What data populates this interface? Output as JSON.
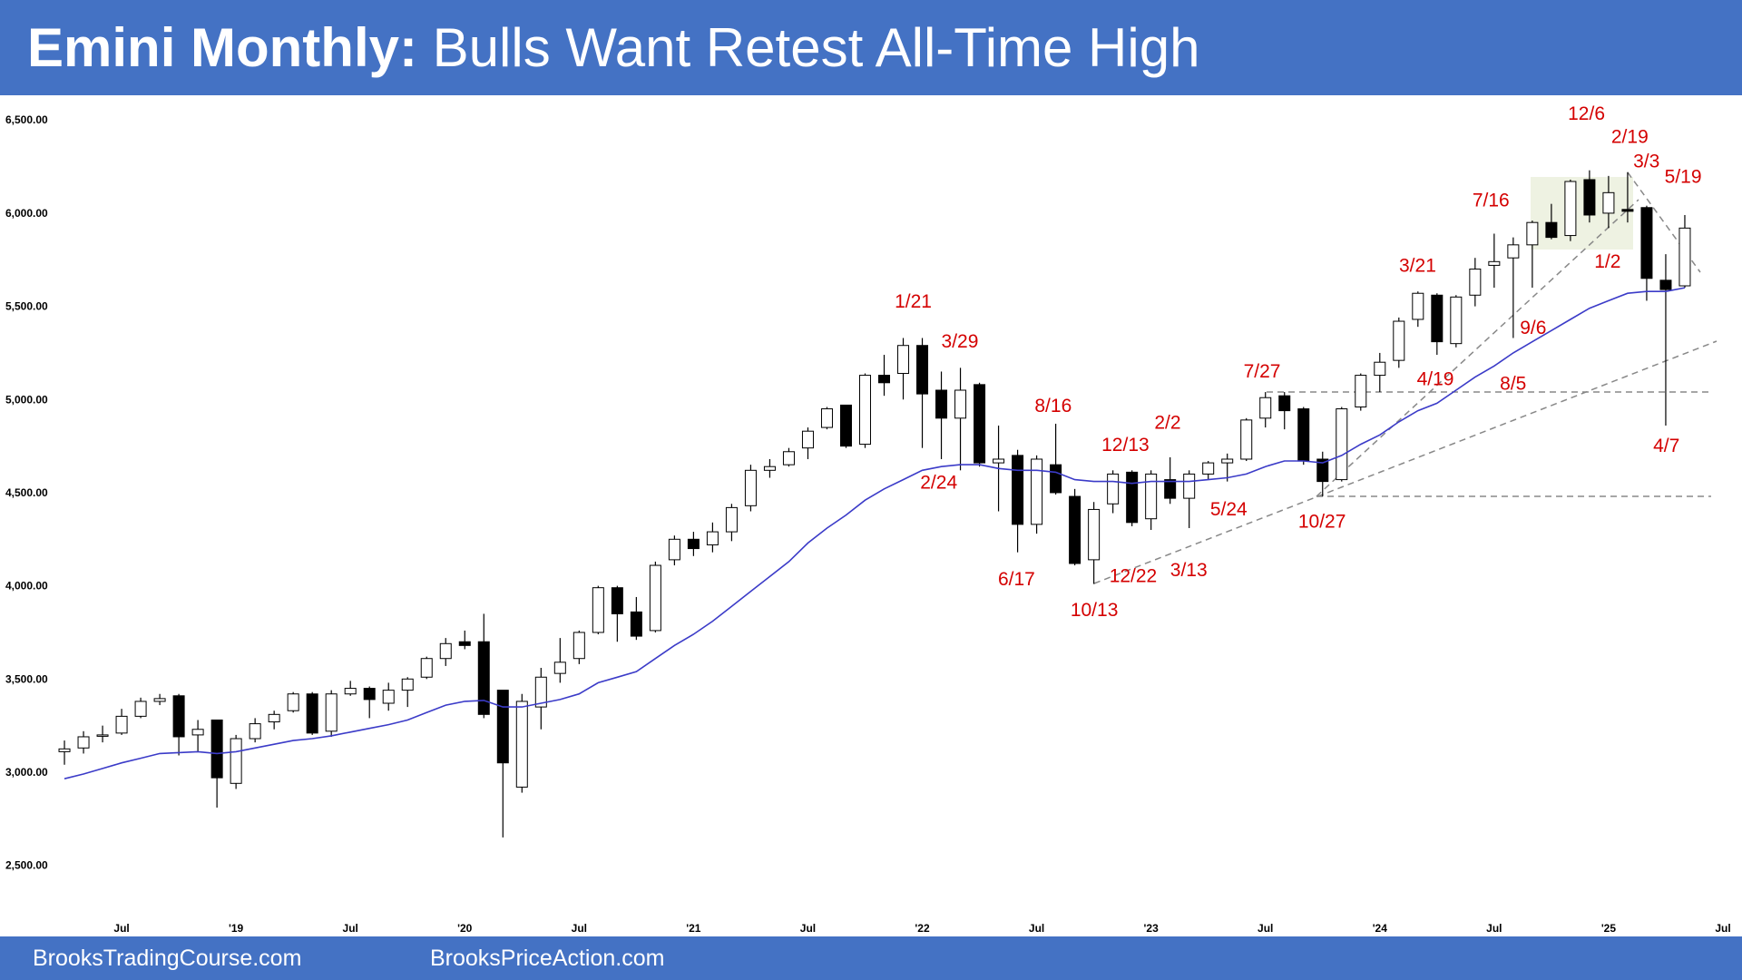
{
  "header": {
    "lead": "Emini Monthly:",
    "title": "Bulls Want Retest All-Time High"
  },
  "footer": {
    "left": "BrooksTradingCourse.com",
    "right": "BrooksPriceAction.com"
  },
  "chart_data": {
    "type": "candlestick",
    "x": [
      "2018-04",
      "2018-05",
      "2018-06",
      "2018-07",
      "2018-08",
      "2018-09",
      "2018-10",
      "2018-11",
      "2018-12",
      "2019-01",
      "2019-02",
      "2019-03",
      "2019-04",
      "2019-05",
      "2019-06",
      "2019-07",
      "2019-08",
      "2019-09",
      "2019-10",
      "2019-11",
      "2019-12",
      "2020-01",
      "2020-02",
      "2020-03",
      "2020-04",
      "2020-05",
      "2020-06",
      "2020-07",
      "2020-08",
      "2020-09",
      "2020-10",
      "2020-11",
      "2020-12",
      "2021-01",
      "2021-02",
      "2021-03",
      "2021-04",
      "2021-05",
      "2021-06",
      "2021-07",
      "2021-08",
      "2021-09",
      "2021-10",
      "2021-11",
      "2021-12",
      "2022-01",
      "2022-02",
      "2022-03",
      "2022-04",
      "2022-05",
      "2022-06",
      "2022-07",
      "2022-08",
      "2022-09",
      "2022-10",
      "2022-11",
      "2022-12",
      "2023-01",
      "2023-02",
      "2023-03",
      "2023-04",
      "2023-05",
      "2023-06",
      "2023-07",
      "2023-08",
      "2023-09",
      "2023-10",
      "2023-11",
      "2023-12",
      "2024-01",
      "2024-02",
      "2024-03",
      "2024-04",
      "2024-05",
      "2024-06",
      "2024-07",
      "2024-08",
      "2024-09",
      "2024-10",
      "2024-11",
      "2024-12",
      "2025-01",
      "2025-02",
      "2025-03",
      "2025-04",
      "2025-05"
    ],
    "open": [
      3110,
      3130,
      3195,
      3210,
      3300,
      3380,
      3410,
      3200,
      3280,
      2940,
      3180,
      3270,
      3330,
      3420,
      3220,
      3420,
      3450,
      3370,
      3440,
      3510,
      3610,
      3700,
      3700,
      3440,
      2920,
      3350,
      3530,
      3610,
      3750,
      3990,
      3860,
      3760,
      4140,
      4250,
      4220,
      4290,
      4430,
      4620,
      4650,
      4740,
      4850,
      4970,
      4760,
      5130,
      5140,
      5290,
      5050,
      4900,
      5080,
      4660,
      4700,
      4330,
      4650,
      4480,
      4140,
      4440,
      4610,
      4360,
      4570,
      4470,
      4600,
      4660,
      4680,
      4900,
      5020,
      4950,
      4680,
      4570,
      4960,
      5130,
      5210,
      5430,
      5560,
      5300,
      5560,
      5720,
      5760,
      5830,
      5950,
      5880,
      6180,
      6000,
      6020,
      6030,
      5640,
      5610
    ],
    "high": [
      3170,
      3220,
      3250,
      3340,
      3400,
      3420,
      3420,
      3280,
      3280,
      3200,
      3290,
      3330,
      3430,
      3430,
      3440,
      3490,
      3460,
      3480,
      3510,
      3620,
      3720,
      3760,
      3850,
      3440,
      3420,
      3560,
      3720,
      3760,
      4000,
      4000,
      3940,
      4130,
      4270,
      4290,
      4340,
      4440,
      4650,
      4680,
      4740,
      4850,
      4960,
      4970,
      5140,
      5240,
      5330,
      5330,
      5150,
      5170,
      5090,
      4860,
      4730,
      4700,
      4870,
      4520,
      4450,
      4620,
      4620,
      4620,
      4690,
      4620,
      4670,
      4710,
      4900,
      5040,
      5040,
      4960,
      4720,
      4960,
      5140,
      5250,
      5440,
      5580,
      5570,
      5560,
      5760,
      5890,
      5870,
      5960,
      6050,
      6180,
      6230,
      6200,
      6220,
      6040,
      5780,
      5990
    ],
    "low": [
      3040,
      3100,
      3160,
      3200,
      3290,
      3360,
      3090,
      3110,
      2810,
      2910,
      3160,
      3230,
      3320,
      3200,
      3190,
      3410,
      3290,
      3330,
      3350,
      3500,
      3570,
      3660,
      3290,
      2650,
      2890,
      3230,
      3480,
      3580,
      3740,
      3700,
      3710,
      3750,
      4110,
      4160,
      4180,
      4240,
      4400,
      4580,
      4640,
      4680,
      4840,
      4740,
      4740,
      5020,
      5000,
      4740,
      4680,
      4620,
      4640,
      4400,
      4180,
      4280,
      4490,
      4110,
      4010,
      4390,
      4320,
      4300,
      4440,
      4310,
      4570,
      4560,
      4670,
      4850,
      4840,
      4650,
      4480,
      4560,
      4940,
      5040,
      5170,
      5390,
      5240,
      5280,
      5500,
      5600,
      5330,
      5600,
      5860,
      5850,
      5950,
      5920,
      5950,
      5530,
      4860,
      5600
    ],
    "close": [
      3125,
      3190,
      3200,
      3300,
      3380,
      3395,
      3190,
      3230,
      2970,
      3180,
      3260,
      3310,
      3420,
      3210,
      3420,
      3450,
      3390,
      3440,
      3500,
      3610,
      3690,
      3680,
      3310,
      3050,
      3380,
      3510,
      3590,
      3750,
      3990,
      3850,
      3730,
      4110,
      4250,
      4200,
      4290,
      4420,
      4620,
      4640,
      4720,
      4830,
      4950,
      4750,
      5130,
      5090,
      5290,
      5030,
      4900,
      5050,
      4660,
      4680,
      4330,
      4680,
      4500,
      4120,
      4410,
      4600,
      4340,
      4600,
      4470,
      4600,
      4660,
      4680,
      4890,
      5010,
      4940,
      4670,
      4560,
      4950,
      5130,
      5200,
      5420,
      5570,
      5310,
      5550,
      5700,
      5740,
      5830,
      5950,
      5870,
      6170,
      5990,
      6110,
      6010,
      5650,
      5590,
      5920
    ],
    "bull_color": "#ffffff",
    "bear_color": "#000000",
    "ema": {
      "color": "#3b3bc8",
      "values": [
        2965,
        2990,
        3020,
        3050,
        3075,
        3100,
        3105,
        3110,
        3100,
        3110,
        3130,
        3150,
        3170,
        3180,
        3195,
        3215,
        3235,
        3255,
        3280,
        3320,
        3360,
        3380,
        3385,
        3350,
        3350,
        3370,
        3390,
        3420,
        3480,
        3510,
        3540,
        3610,
        3680,
        3740,
        3810,
        3890,
        3970,
        4050,
        4130,
        4230,
        4310,
        4380,
        4460,
        4520,
        4570,
        4620,
        4640,
        4650,
        4650,
        4630,
        4620,
        4620,
        4610,
        4570,
        4560,
        4560,
        4550,
        4560,
        4560,
        4560,
        4570,
        4580,
        4600,
        4640,
        4670,
        4670,
        4660,
        4700,
        4760,
        4810,
        4880,
        4940,
        4980,
        5050,
        5120,
        5180,
        5250,
        5310,
        5370,
        5430,
        5490,
        5530,
        5570,
        5580,
        5580,
        5600
      ]
    },
    "xlim": [
      "2018-01",
      "2025-08"
    ],
    "xticks": [
      {
        "value": "2018-07",
        "label": "Jul"
      },
      {
        "value": "2019-01",
        "label": "'19"
      },
      {
        "value": "2019-07",
        "label": "Jul"
      },
      {
        "value": "2020-01",
        "label": "'20"
      },
      {
        "value": "2020-07",
        "label": "Jul"
      },
      {
        "value": "2021-01",
        "label": "'21"
      },
      {
        "value": "2021-07",
        "label": "Jul"
      },
      {
        "value": "2022-01",
        "label": "'22"
      },
      {
        "value": "2022-07",
        "label": "Jul"
      },
      {
        "value": "2023-01",
        "label": "'23"
      },
      {
        "value": "2023-07",
        "label": "Jul"
      },
      {
        "value": "2024-01",
        "label": "'24"
      },
      {
        "value": "2024-07",
        "label": "Jul"
      },
      {
        "value": "2025-01",
        "label": "'25"
      },
      {
        "value": "2025-07",
        "label": "Jul"
      }
    ],
    "ylim": [
      2250,
      6620
    ],
    "yticks": [
      {
        "value": 2500,
        "label": "2,500.00"
      },
      {
        "value": 3000,
        "label": "3,000.00"
      },
      {
        "value": 3500,
        "label": "3,500.00"
      },
      {
        "value": 4000,
        "label": "4,000.00"
      },
      {
        "value": 4500,
        "label": "4,500.00"
      },
      {
        "value": 5000,
        "label": "5,000.00"
      },
      {
        "value": 5500,
        "label": "5,500.00"
      },
      {
        "value": 6000,
        "label": "6,000.00"
      },
      {
        "value": 6500,
        "label": "6,500.00"
      }
    ],
    "annotations": [
      "12/6",
      "2/19",
      "3/3",
      "5/19",
      "7/16",
      "1/2",
      "3/21",
      "1/21",
      "9/6",
      "3/29",
      "4/19",
      "8/5",
      "7/27",
      "8/16",
      "2/2",
      "12/13",
      "4/7",
      "2/24",
      "5/24",
      "10/27",
      "6/17",
      "12/22",
      "3/13",
      "10/13"
    ]
  }
}
